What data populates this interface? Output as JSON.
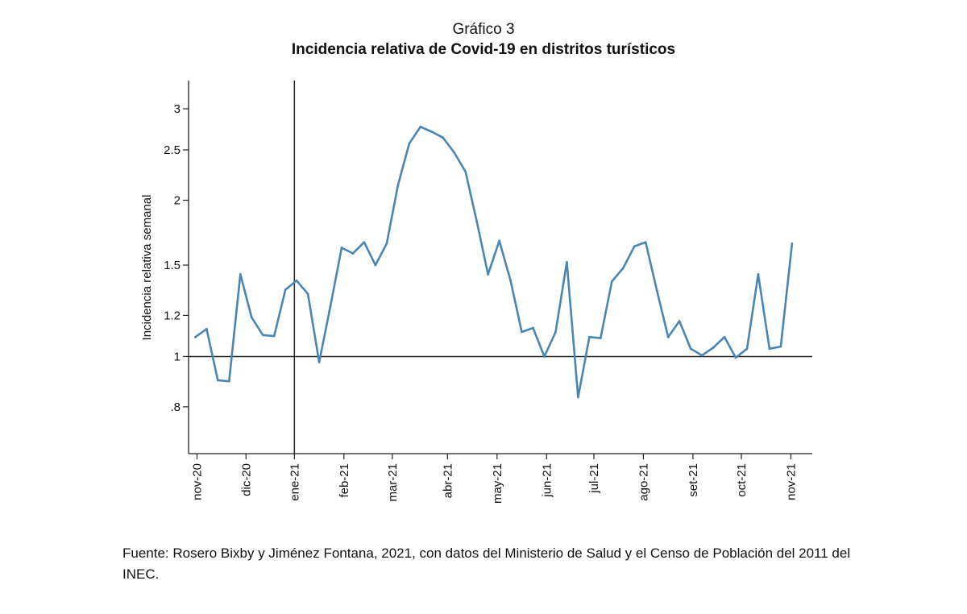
{
  "figure_label": "Gráfico 3",
  "title": "Incidencia relativa de Covid-19 en distritos turísticos",
  "source_note": "Fuente: Rosero Bixby y Jiménez Fontana, 2021, con datos del Ministerio de Salud y el Censo de Población del 2011 del INEC.",
  "colors": {
    "series": "#4a86b4",
    "axis": "#222222",
    "text": "#111111"
  },
  "chart_data": {
    "type": "line",
    "title": "Incidencia relativa de Covid-19 en distritos turísticos",
    "xlabel": "",
    "ylabel": "Incidencia relativa semanal",
    "y_scale": "log",
    "ylim": [
      0.65,
      3.4
    ],
    "x_range_weeks": [
      -0.6,
      54.8
    ],
    "yticks": [
      {
        "value": 0.8,
        "label": ".8"
      },
      {
        "value": 1.0,
        "label": "1"
      },
      {
        "value": 1.2,
        "label": "1.2"
      },
      {
        "value": 1.5,
        "label": "1.5"
      },
      {
        "value": 2.0,
        "label": "2"
      },
      {
        "value": 2.5,
        "label": "2.5"
      },
      {
        "value": 3.0,
        "label": "3"
      }
    ],
    "xticks": [
      {
        "week": 0.15,
        "label": "nov-20"
      },
      {
        "week": 4.5,
        "label": "dic-20"
      },
      {
        "week": 8.8,
        "label": "ene-21"
      },
      {
        "week": 13.2,
        "label": "feb-21"
      },
      {
        "week": 17.5,
        "label": "mar-21"
      },
      {
        "week": 22.4,
        "label": "abr-21"
      },
      {
        "week": 26.8,
        "label": "may-21"
      },
      {
        "week": 31.2,
        "label": "jun-21"
      },
      {
        "week": 35.4,
        "label": "jul-21"
      },
      {
        "week": 39.8,
        "label": "ago-21"
      },
      {
        "week": 44.2,
        "label": "set-21"
      },
      {
        "week": 48.5,
        "label": "oct-21"
      },
      {
        "week": 52.9,
        "label": "nov-21"
      }
    ],
    "reference_lines": [
      {
        "axis": "y",
        "value": 1.0
      },
      {
        "axis": "x",
        "week": 8.8
      }
    ],
    "series": [
      {
        "name": "",
        "values": [
          1.09,
          1.13,
          0.9,
          0.896,
          1.44,
          1.19,
          1.1,
          1.095,
          1.345,
          1.4,
          1.32,
          0.975,
          1.25,
          1.62,
          1.58,
          1.66,
          1.5,
          1.65,
          2.14,
          2.57,
          2.77,
          2.71,
          2.64,
          2.47,
          2.27,
          1.82,
          1.44,
          1.67,
          1.4,
          1.115,
          1.135,
          1.0,
          1.115,
          1.52,
          0.835,
          1.09,
          1.085,
          1.395,
          1.48,
          1.63,
          1.66,
          1.34,
          1.09,
          1.17,
          1.035,
          1.005,
          1.04,
          1.09,
          0.995,
          1.035,
          1.44,
          1.035,
          1.045,
          1.65
        ]
      }
    ]
  }
}
